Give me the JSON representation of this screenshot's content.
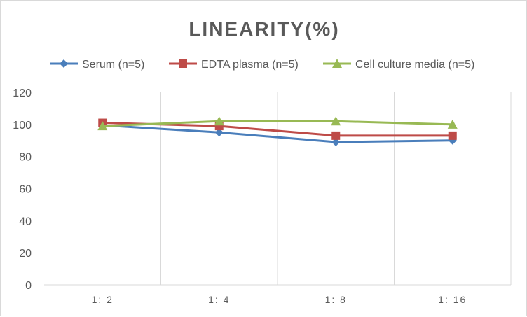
{
  "chart_data": {
    "type": "line",
    "title": "LINEARITY(%)",
    "categories": [
      "1:2",
      "1:4",
      "1:8",
      "1:16"
    ],
    "series": [
      {
        "name": "Serum (n=5)",
        "values": [
          99.5,
          95,
          89,
          90
        ],
        "color": "#4a7ebb",
        "marker": "diamond"
      },
      {
        "name": "EDTA plasma (n=5)",
        "values": [
          101,
          99,
          93,
          93
        ],
        "color": "#be4b48",
        "marker": "square"
      },
      {
        "name": "Cell culture media (n=5)",
        "values": [
          99,
          102,
          102,
          100
        ],
        "color": "#98b954",
        "marker": "triangle"
      }
    ],
    "ylim": [
      0,
      120
    ],
    "yticks": [
      0,
      20,
      40,
      60,
      80,
      100,
      120
    ],
    "legend": "top",
    "grid": "vertical"
  }
}
